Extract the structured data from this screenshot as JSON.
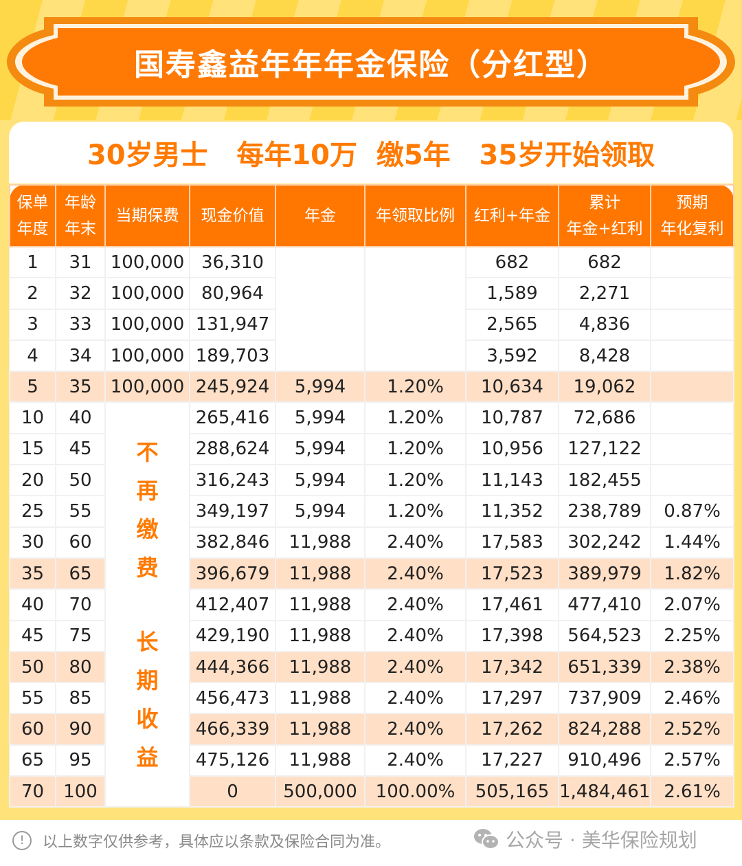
{
  "banner": {
    "title": "国寿鑫益年年年金保险（分红型）"
  },
  "subtitle": {
    "text": "30岁男士   每年10万  缴5年   35岁开始领取"
  },
  "table": {
    "headers": [
      {
        "key": "policy_year",
        "line1": "保单",
        "line2": "年度"
      },
      {
        "key": "age_end",
        "line1": "年龄",
        "line2": "年末"
      },
      {
        "key": "premium",
        "line1": "当期保费",
        "line2": ""
      },
      {
        "key": "cash_value",
        "line1": "现金价值",
        "line2": ""
      },
      {
        "key": "annuity",
        "line1": "年金",
        "line2": ""
      },
      {
        "key": "annual_ratio",
        "line1": "年领取比例",
        "line2": ""
      },
      {
        "key": "dividend_plus_annuity",
        "line1": "红利+年金",
        "line2": ""
      },
      {
        "key": "cumulative",
        "line1": "累计",
        "line2": "年金+红利"
      },
      {
        "key": "irr",
        "line1": "预期",
        "line2": "年化复利"
      }
    ],
    "merged_premium_note": {
      "part1": [
        "不",
        "再",
        "缴",
        "费"
      ],
      "part2": [
        "长",
        "期",
        "收",
        "益"
      ]
    },
    "rows": [
      {
        "year": "1",
        "age": "31",
        "premium": "100,000",
        "cash_value": "36,310",
        "annuity": "",
        "ratio": "",
        "div_annuity": "682",
        "cumulative": "682",
        "irr": "",
        "highlight": false
      },
      {
        "year": "2",
        "age": "32",
        "premium": "100,000",
        "cash_value": "80,964",
        "annuity": "",
        "ratio": "",
        "div_annuity": "1,589",
        "cumulative": "2,271",
        "irr": "",
        "highlight": false
      },
      {
        "year": "3",
        "age": "33",
        "premium": "100,000",
        "cash_value": "131,947",
        "annuity": "",
        "ratio": "",
        "div_annuity": "2,565",
        "cumulative": "4,836",
        "irr": "",
        "highlight": false
      },
      {
        "year": "4",
        "age": "34",
        "premium": "100,000",
        "cash_value": "189,703",
        "annuity": "",
        "ratio": "",
        "div_annuity": "3,592",
        "cumulative": "8,428",
        "irr": "",
        "highlight": false
      },
      {
        "year": "5",
        "age": "35",
        "premium": "100,000",
        "cash_value": "245,924",
        "annuity": "5,994",
        "ratio": "1.20%",
        "div_annuity": "10,634",
        "cumulative": "19,062",
        "irr": "",
        "highlight": true
      },
      {
        "year": "10",
        "age": "40",
        "premium": "",
        "cash_value": "265,416",
        "annuity": "5,994",
        "ratio": "1.20%",
        "div_annuity": "10,787",
        "cumulative": "72,686",
        "irr": "",
        "highlight": false
      },
      {
        "year": "15",
        "age": "45",
        "premium": "",
        "cash_value": "288,624",
        "annuity": "5,994",
        "ratio": "1.20%",
        "div_annuity": "10,956",
        "cumulative": "127,122",
        "irr": "",
        "highlight": false
      },
      {
        "year": "20",
        "age": "50",
        "premium": "",
        "cash_value": "316,243",
        "annuity": "5,994",
        "ratio": "1.20%",
        "div_annuity": "11,143",
        "cumulative": "182,455",
        "irr": "",
        "highlight": false
      },
      {
        "year": "25",
        "age": "55",
        "premium": "",
        "cash_value": "349,197",
        "annuity": "5,994",
        "ratio": "1.20%",
        "div_annuity": "11,352",
        "cumulative": "238,789",
        "irr": "0.87%",
        "highlight": false
      },
      {
        "year": "30",
        "age": "60",
        "premium": "",
        "cash_value": "382,846",
        "annuity": "11,988",
        "ratio": "2.40%",
        "div_annuity": "17,583",
        "cumulative": "302,242",
        "irr": "1.44%",
        "highlight": false
      },
      {
        "year": "35",
        "age": "65",
        "premium": "",
        "cash_value": "396,679",
        "annuity": "11,988",
        "ratio": "2.40%",
        "div_annuity": "17,523",
        "cumulative": "389,979",
        "irr": "1.82%",
        "highlight": true
      },
      {
        "year": "40",
        "age": "70",
        "premium": "",
        "cash_value": "412,407",
        "annuity": "11,988",
        "ratio": "2.40%",
        "div_annuity": "17,461",
        "cumulative": "477,410",
        "irr": "2.07%",
        "highlight": false
      },
      {
        "year": "45",
        "age": "75",
        "premium": "",
        "cash_value": "429,190",
        "annuity": "11,988",
        "ratio": "2.40%",
        "div_annuity": "17,398",
        "cumulative": "564,523",
        "irr": "2.25%",
        "highlight": false
      },
      {
        "year": "50",
        "age": "80",
        "premium": "",
        "cash_value": "444,366",
        "annuity": "11,988",
        "ratio": "2.40%",
        "div_annuity": "17,342",
        "cumulative": "651,339",
        "irr": "2.38%",
        "highlight": true
      },
      {
        "year": "55",
        "age": "85",
        "premium": "",
        "cash_value": "456,473",
        "annuity": "11,988",
        "ratio": "2.40%",
        "div_annuity": "17,297",
        "cumulative": "737,909",
        "irr": "2.46%",
        "highlight": false
      },
      {
        "year": "60",
        "age": "90",
        "premium": "",
        "cash_value": "466,339",
        "annuity": "11,988",
        "ratio": "2.40%",
        "div_annuity": "17,262",
        "cumulative": "824,288",
        "irr": "2.52%",
        "highlight": true
      },
      {
        "year": "65",
        "age": "95",
        "premium": "",
        "cash_value": "475,126",
        "annuity": "11,988",
        "ratio": "2.40%",
        "div_annuity": "17,227",
        "cumulative": "910,496",
        "irr": "2.57%",
        "highlight": false
      },
      {
        "year": "70",
        "age": "100",
        "premium": "",
        "cash_value": "0",
        "annuity": "500,000",
        "ratio": "100.00%",
        "div_annuity": "505,165",
        "cumulative": "1,484,461",
        "irr": "2.61%",
        "highlight": true
      }
    ]
  },
  "footer": {
    "note_icon": "!",
    "note": "以上数字仅供参考，具体应以条款及保险合同为准。",
    "brand": "公众号 · 美华保险规划"
  },
  "colors": {
    "accent_orange": "#ff7700",
    "highlight_row": "#ffdfc6",
    "background_yellow": "#ffd84a"
  }
}
